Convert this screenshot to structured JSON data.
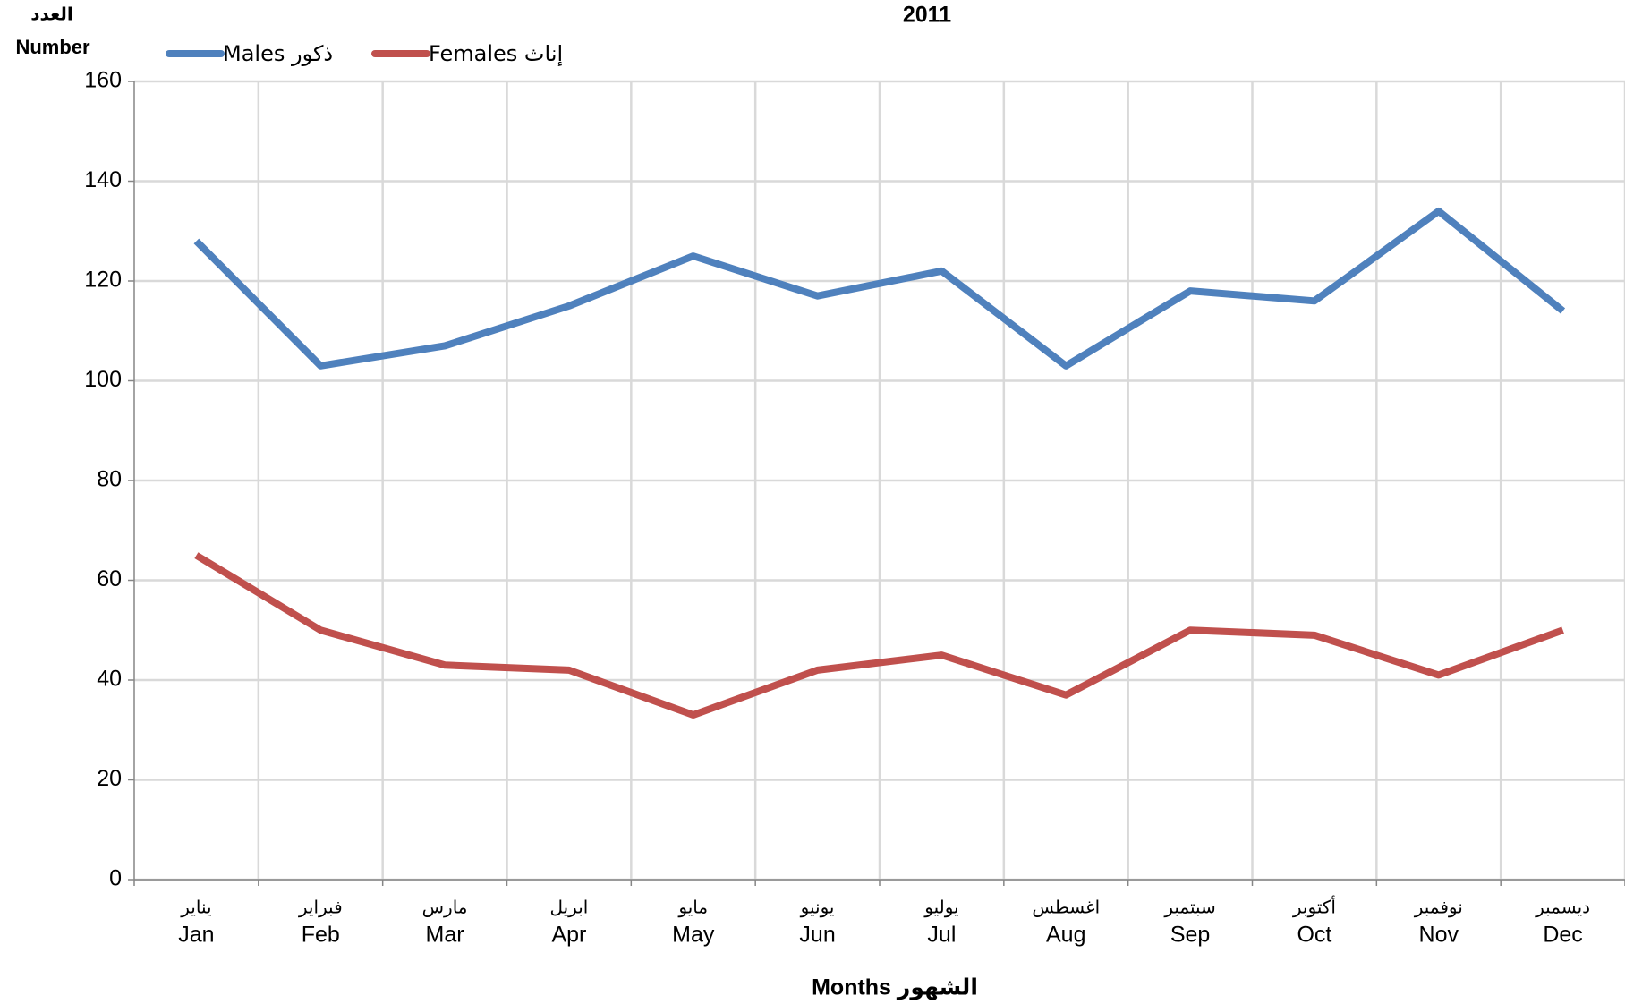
{
  "chart_data": {
    "type": "line",
    "title": "2011",
    "y_label_ar": "العدد",
    "y_label": "Number",
    "x_label": "Months الشهور",
    "categories": [
      "Jan",
      "Feb",
      "Mar",
      "Apr",
      "May",
      "Jun",
      "Jul",
      "Aug",
      "Sep",
      "Oct",
      "Nov",
      "Dec"
    ],
    "categories_ar": [
      "يناير",
      "فبراير",
      "مارس",
      "ابريل",
      "مايو",
      "يونيو",
      "يوليو",
      "اغسطس",
      "سبتمبر",
      "أكتوبر",
      "نوفمبر",
      "ديسمبر"
    ],
    "series": [
      {
        "name": "Males ذكور",
        "color": "#4f81bd",
        "values": [
          128,
          103,
          107,
          115,
          125,
          117,
          122,
          103,
          118,
          116,
          134,
          114
        ]
      },
      {
        "name": "Females إناث",
        "color": "#c0504d",
        "values": [
          65,
          50,
          43,
          42,
          33,
          42,
          45,
          37,
          50,
          49,
          41,
          50
        ]
      }
    ],
    "ylim": [
      0,
      160
    ],
    "yticks": [
      0,
      20,
      40,
      60,
      80,
      100,
      120,
      140,
      160
    ],
    "grid": true,
    "legend": "top-left"
  }
}
